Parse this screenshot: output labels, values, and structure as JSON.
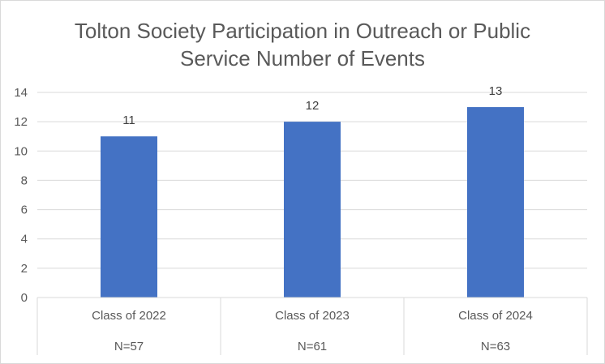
{
  "chart_data": {
    "type": "bar",
    "title": "Tolton Society Participation in Outreach or Public Service Number of Events",
    "title_lines": [
      "Tolton Society Participation in Outreach or Public",
      "Service Number of Events"
    ],
    "categories": [
      "Class of 2022",
      "Class of 2023",
      "Class of 2024"
    ],
    "subcategories": [
      "N=57",
      "N=61",
      "N=63"
    ],
    "values": [
      11,
      12,
      13
    ],
    "data_labels": [
      "11",
      "12",
      "13"
    ],
    "ylim": [
      0,
      14
    ],
    "yticks": [
      "0",
      "2",
      "4",
      "6",
      "8",
      "10",
      "12",
      "14"
    ],
    "grid": true,
    "legend": "none",
    "xlabel": "",
    "ylabel": "",
    "bar_color": "#4472C4"
  }
}
